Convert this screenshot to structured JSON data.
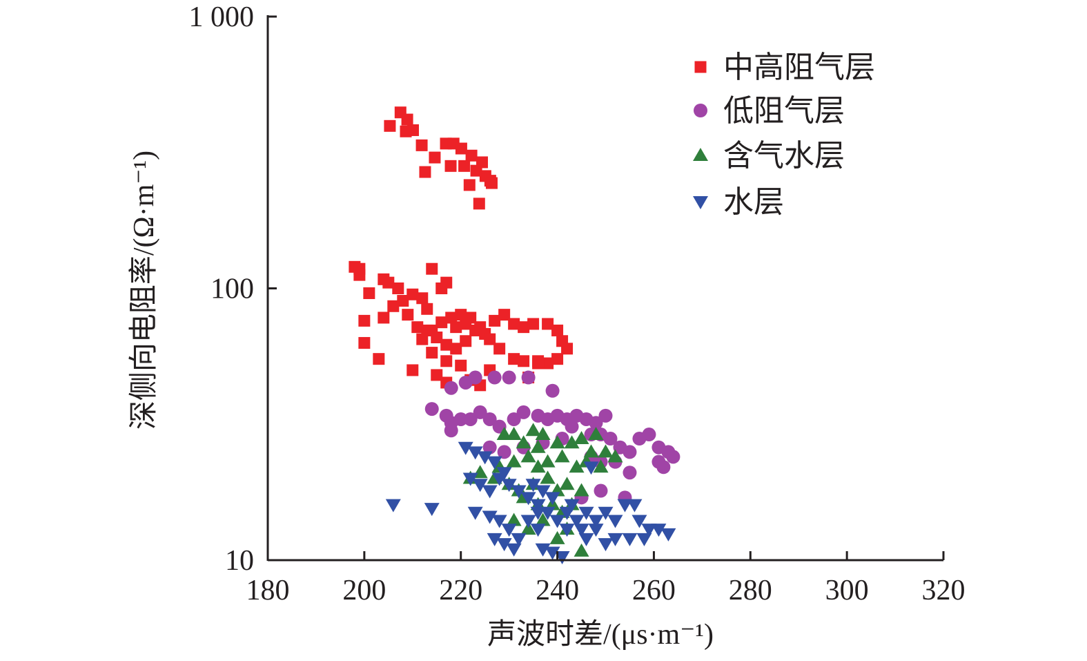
{
  "chart_data": {
    "type": "scatter",
    "title": "",
    "xlabel": "声波时差/(μs·m⁻¹)",
    "ylabel": "深侧向电阻率/(Ω·m⁻¹)",
    "xlim": [
      180,
      320
    ],
    "ylim": [
      10,
      1000
    ],
    "yscale": "log",
    "grid": false,
    "legend_position": "top-right",
    "x_ticks": [
      "180",
      "200",
      "220",
      "240",
      "260",
      "280",
      "300",
      "320"
    ],
    "y_ticks": [
      "10",
      "100",
      "1 000"
    ],
    "series": [
      {
        "name": "中高阻气层",
        "marker": "square",
        "color": "#ec2227",
        "points": [
          [
            205.3,
            396
          ],
          [
            207.5,
            444
          ],
          [
            208.9,
            418
          ],
          [
            210.1,
            382
          ],
          [
            208.6,
            378
          ],
          [
            211.9,
            336
          ],
          [
            212.6,
            268
          ],
          [
            214.6,
            303
          ],
          [
            216.9,
            341
          ],
          [
            218.5,
            341
          ],
          [
            217.9,
            282
          ],
          [
            220.1,
            327
          ],
          [
            220.7,
            282
          ],
          [
            222.2,
            308
          ],
          [
            223.2,
            271
          ],
          [
            224.4,
            291
          ],
          [
            225.1,
            259
          ],
          [
            226.1,
            249
          ],
          [
            223.8,
            205
          ],
          [
            221.8,
            240
          ],
          [
            226.4,
            244
          ],
          [
            198,
            120
          ],
          [
            199,
            112
          ],
          [
            199,
            118
          ],
          [
            204,
            108
          ],
          [
            205,
            105
          ],
          [
            207,
            100
          ],
          [
            201,
            96
          ],
          [
            200,
            76
          ],
          [
            200,
            63
          ],
          [
            203,
            55
          ],
          [
            204,
            78
          ],
          [
            206,
            86
          ],
          [
            208,
            90
          ],
          [
            210,
            95
          ],
          [
            212,
            92
          ],
          [
            213,
            84
          ],
          [
            214,
            118
          ],
          [
            216,
            100
          ],
          [
            217,
            105
          ],
          [
            209,
            80
          ],
          [
            211,
            72
          ],
          [
            213,
            70
          ],
          [
            215,
            66
          ],
          [
            217,
            62
          ],
          [
            219,
            60
          ],
          [
            221,
            64
          ],
          [
            223,
            70
          ],
          [
            225,
            68
          ],
          [
            227,
            76
          ],
          [
            229,
            80
          ],
          [
            231,
            74
          ],
          [
            233,
            72
          ],
          [
            235,
            74
          ],
          [
            238,
            74
          ],
          [
            240,
            70
          ],
          [
            241,
            64
          ],
          [
            242,
            60
          ],
          [
            240,
            55
          ],
          [
            238,
            53
          ],
          [
            236,
            53
          ],
          [
            233,
            54
          ],
          [
            231,
            55
          ],
          [
            228,
            60
          ],
          [
            226,
            65
          ],
          [
            224,
            72
          ],
          [
            222,
            78
          ],
          [
            220,
            80
          ],
          [
            218,
            78
          ],
          [
            216,
            75
          ],
          [
            214,
            70
          ],
          [
            212,
            65
          ],
          [
            210,
            50
          ],
          [
            215,
            48
          ],
          [
            217,
            45
          ],
          [
            220,
            52
          ],
          [
            222,
            46
          ],
          [
            224,
            44
          ],
          [
            226,
            50
          ],
          [
            214,
            58
          ],
          [
            217,
            54
          ],
          [
            219,
            72
          ],
          [
            221,
            74
          ],
          [
            234,
            47
          ],
          [
            236,
            54
          ]
        ]
      },
      {
        "name": "低阻气层",
        "marker": "circle",
        "color": "#a044a6",
        "points": [
          [
            214,
            36
          ],
          [
            218,
            43
          ],
          [
            221,
            45
          ],
          [
            223,
            47
          ],
          [
            227,
            47
          ],
          [
            230,
            47
          ],
          [
            234,
            47
          ],
          [
            239,
            42
          ],
          [
            217,
            34
          ],
          [
            218,
            32
          ],
          [
            220,
            33
          ],
          [
            222,
            33
          ],
          [
            224,
            35
          ],
          [
            226,
            33
          ],
          [
            228,
            31
          ],
          [
            231,
            33
          ],
          [
            233,
            35
          ],
          [
            236,
            34
          ],
          [
            238,
            33
          ],
          [
            240,
            34
          ],
          [
            242,
            33
          ],
          [
            244,
            34
          ],
          [
            246,
            33
          ],
          [
            248,
            32
          ],
          [
            250,
            34
          ],
          [
            243,
            31
          ],
          [
            247,
            29
          ],
          [
            249,
            29
          ],
          [
            251,
            28
          ],
          [
            253,
            26
          ],
          [
            255,
            25
          ],
          [
            257,
            28
          ],
          [
            259,
            29
          ],
          [
            261,
            26
          ],
          [
            263,
            25
          ],
          [
            264,
            24
          ],
          [
            262,
            22
          ],
          [
            261,
            23
          ],
          [
            255,
            21
          ],
          [
            252,
            23
          ],
          [
            249,
            23
          ],
          [
            247,
            24
          ],
          [
            254,
            17
          ],
          [
            249,
            18
          ],
          [
            245,
            17
          ],
          [
            226,
            26
          ],
          [
            229,
            25
          ],
          [
            233,
            26
          ],
          [
            237,
            27
          ],
          [
            241,
            28
          ],
          [
            218,
            30
          ]
        ]
      },
      {
        "name": "含气水层",
        "marker": "triangle-up",
        "color": "#2f7f3b",
        "points": [
          [
            229,
            29
          ],
          [
            231,
            29
          ],
          [
            235,
            30
          ],
          [
            237,
            29
          ],
          [
            233,
            27
          ],
          [
            236,
            26
          ],
          [
            240,
            27
          ],
          [
            243,
            27
          ],
          [
            245,
            28
          ],
          [
            248,
            29
          ],
          [
            250,
            25
          ],
          [
            252,
            24
          ],
          [
            247,
            25
          ],
          [
            231,
            23
          ],
          [
            234,
            24
          ],
          [
            238,
            23
          ],
          [
            241,
            24
          ],
          [
            244,
            22
          ],
          [
            246,
            23
          ],
          [
            249,
            22
          ],
          [
            222,
            20
          ],
          [
            224,
            21
          ],
          [
            227,
            20
          ],
          [
            230,
            19
          ],
          [
            232,
            18
          ],
          [
            235,
            19
          ],
          [
            238,
            20
          ],
          [
            240,
            18
          ],
          [
            242,
            19
          ],
          [
            245,
            18
          ],
          [
            233,
            17
          ],
          [
            236,
            16
          ],
          [
            239,
            16
          ],
          [
            241,
            15
          ],
          [
            243,
            16
          ],
          [
            231,
            14
          ],
          [
            234,
            13
          ],
          [
            237,
            14
          ],
          [
            240,
            12
          ],
          [
            242,
            13
          ],
          [
            245,
            10.8
          ],
          [
            238,
            20
          ],
          [
            228,
            22
          ],
          [
            236,
            22
          ]
        ]
      },
      {
        "name": "水层",
        "marker": "triangle-down",
        "color": "#3150a5",
        "points": [
          [
            206,
            16
          ],
          [
            214,
            15.5
          ],
          [
            221,
            26
          ],
          [
            223,
            25
          ],
          [
            225,
            24
          ],
          [
            227,
            23
          ],
          [
            229,
            21
          ],
          [
            222,
            20
          ],
          [
            224,
            19
          ],
          [
            226,
            18
          ],
          [
            228,
            20
          ],
          [
            230,
            19
          ],
          [
            232,
            18
          ],
          [
            234,
            17
          ],
          [
            236,
            16
          ],
          [
            223,
            15
          ],
          [
            228,
            14
          ],
          [
            230,
            13
          ],
          [
            232,
            12
          ],
          [
            234,
            14
          ],
          [
            236,
            13
          ],
          [
            238,
            15
          ],
          [
            240,
            14
          ],
          [
            242,
            15
          ],
          [
            244,
            14
          ],
          [
            246,
            15
          ],
          [
            248,
            14
          ],
          [
            250,
            15
          ],
          [
            252,
            14
          ],
          [
            254,
            16
          ],
          [
            256,
            16
          ],
          [
            257,
            14
          ],
          [
            259,
            13
          ],
          [
            261,
            13
          ],
          [
            263,
            12.5
          ],
          [
            252,
            12
          ],
          [
            250,
            11.5
          ],
          [
            248,
            13
          ],
          [
            246,
            12
          ],
          [
            241,
            10.3
          ],
          [
            239,
            10.7
          ],
          [
            237,
            11
          ],
          [
            229,
            11.5
          ],
          [
            227,
            12
          ],
          [
            231,
            11
          ],
          [
            226,
            14.5
          ],
          [
            243,
            16
          ],
          [
            245,
            13
          ],
          [
            235,
            19
          ],
          [
            237,
            18
          ],
          [
            239,
            17
          ],
          [
            247,
            22
          ],
          [
            258,
            12
          ],
          [
            255,
            12
          ],
          [
            242,
            13
          ],
          [
            236,
            15
          ]
        ]
      }
    ]
  }
}
